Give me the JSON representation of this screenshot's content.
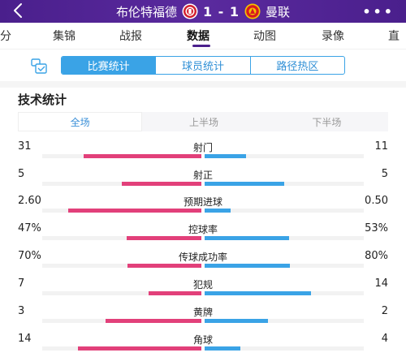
{
  "header": {
    "home_team": "布伦特福德",
    "score": "1 - 1",
    "away_team": "曼联",
    "more": "•••"
  },
  "tabs": [
    {
      "label": "分"
    },
    {
      "label": "集锦"
    },
    {
      "label": "战报"
    },
    {
      "label": "数据"
    },
    {
      "label": "动图"
    },
    {
      "label": "录像"
    },
    {
      "label": "直"
    }
  ],
  "active_tab": "数据",
  "segmented": [
    {
      "label": "比赛统计"
    },
    {
      "label": "球员统计"
    },
    {
      "label": "路径热区"
    }
  ],
  "section_title": "技术统计",
  "period": [
    {
      "label": "全场"
    },
    {
      "label": "上半场"
    },
    {
      "label": "下半场"
    }
  ],
  "colors": {
    "header": "#4a1f8c",
    "home": "#e2407a",
    "away": "#3aa3e6"
  },
  "stats": [
    {
      "name": "射门",
      "left": "31",
      "right": "11",
      "lv": 31,
      "rv": 11
    },
    {
      "name": "射正",
      "left": "5",
      "right": "5",
      "lv": 5,
      "rv": 5
    },
    {
      "name": "预期进球",
      "left": "2.60",
      "right": "0.50",
      "lv": 2.6,
      "rv": 0.5
    },
    {
      "name": "控球率",
      "left": "47%",
      "right": "53%",
      "lv": 47,
      "rv": 53
    },
    {
      "name": "传球成功率",
      "left": "70%",
      "right": "80%",
      "lv": 70,
      "rv": 80
    },
    {
      "name": "犯规",
      "left": "7",
      "right": "14",
      "lv": 7,
      "rv": 14
    },
    {
      "name": "黄牌",
      "left": "3",
      "right": "2",
      "lv": 3,
      "rv": 2
    },
    {
      "name": "角球",
      "left": "14",
      "right": "4",
      "lv": 14,
      "rv": 4
    }
  ]
}
